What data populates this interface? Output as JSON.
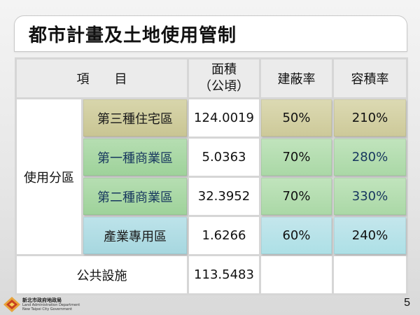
{
  "slide": {
    "title": "都市計畫及土地使用管制",
    "page_number": "5"
  },
  "table": {
    "header": {
      "item": "項　　目",
      "area_line1": "面積",
      "area_line2": "（公頃）",
      "coverage": "建蔽率",
      "far": "容積率"
    },
    "group_label": "使用分區",
    "rows": [
      {
        "zone": "第三種住宅區",
        "area": "124.0019",
        "coverage": "50%",
        "far": "210%"
      },
      {
        "zone": "第一種商業區",
        "area": "5.0363",
        "coverage": "70%",
        "far": "280%"
      },
      {
        "zone": "第二種商業區",
        "area": "32.3952",
        "coverage": "70%",
        "far": "330%"
      },
      {
        "zone": "產業專用區",
        "area": "1.6266",
        "coverage": "60%",
        "far": "240%"
      }
    ],
    "public": {
      "label": "公共設施",
      "area": "113.5483",
      "coverage": "",
      "far": ""
    }
  },
  "logo": {
    "name": "新北市政府地政局",
    "en_line1": "Land Administration Department",
    "en_line2": "New Taipei City Government",
    "icon": "diamond-logo-icon"
  },
  "colors": {
    "residential": "#d8d6ac",
    "commercial": "#b6deb2",
    "industrial": "#bde3ea",
    "commercial_text": "#17375e"
  }
}
